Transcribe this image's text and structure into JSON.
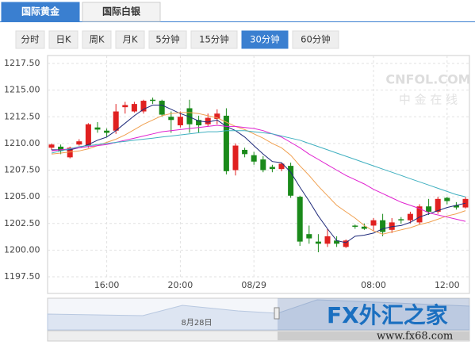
{
  "ui": {
    "tabs": [
      "国际黄金",
      "国际白银"
    ],
    "selected_tab": 0,
    "periods": [
      "分时",
      "日K",
      "周K",
      "月K",
      "5分钟",
      "15分钟",
      "30分钟",
      "60分钟"
    ],
    "selected_period": 6,
    "watermark": "CNFOL.COM",
    "watermark_sub": "中 金 在 线",
    "logo": "FX外汇之家",
    "logo_url": "www.fx68.com",
    "navigator_label": "8月28日"
  },
  "chart_data": {
    "type": "candlestick",
    "up_color": "#e02020",
    "down_color": "#1a8a1a",
    "categories": [
      null,
      null,
      null,
      null,
      null,
      null,
      "16:00",
      null,
      null,
      null,
      null,
      null,
      null,
      null,
      "20:00",
      null,
      null,
      null,
      null,
      null,
      null,
      null,
      "08/29",
      null,
      null,
      null,
      null,
      null,
      null,
      null,
      null,
      null,
      null,
      null,
      null,
      "08:00",
      null,
      null,
      null,
      null,
      null,
      null,
      null,
      "12:00",
      null,
      null
    ],
    "open": [
      1209.6,
      1209.7,
      1208.7,
      1209.9,
      1209.8,
      1211.5,
      1211.2,
      1211.2,
      1213.4,
      1213.0,
      1213.0,
      1214.1,
      1214.0,
      1212.5,
      1211.7,
      1213.3,
      1212.2,
      1211.8,
      1212.3,
      1212.6,
      1207.5,
      1209.4,
      1208.9,
      1208.5,
      1207.8,
      1207.6,
      1207.9,
      1205.0,
      1201.5,
      1200.8,
      1200.6,
      1200.9,
      1200.3,
      1202.3,
      1202.2,
      1202.3,
      1202.8,
      1201.9,
      1202.9,
      1202.8,
      1202.6,
      1204.1,
      1203.6,
      1204.9,
      1204.2,
      1204.0
    ],
    "high": [
      1210.0,
      1209.9,
      1209.7,
      1210.4,
      1211.9,
      1212.0,
      1211.4,
      1213.7,
      1213.9,
      1213.9,
      1214.1,
      1214.3,
      1214.1,
      1213.0,
      1213.0,
      1214.1,
      1212.6,
      1212.8,
      1213.2,
      1213.3,
      1210.0,
      1209.6,
      1209.2,
      1208.8,
      1208.0,
      1208.2,
      1208.2,
      1205.1,
      1202.3,
      1201.5,
      1202.0,
      1201.3,
      1201.0,
      1202.4,
      1202.5,
      1203.0,
      1203.4,
      1203.0,
      1203.1,
      1203.6,
      1204.3,
      1204.8,
      1205.0,
      1205.0,
      1204.5,
      1205.0
    ],
    "low": [
      1209.4,
      1209.0,
      1208.6,
      1209.8,
      1209.6,
      1211.0,
      1210.6,
      1210.9,
      1212.8,
      1212.9,
      1212.8,
      1213.7,
      1212.5,
      1211.0,
      1211.5,
      1211.0,
      1211.0,
      1211.6,
      1211.8,
      1207.1,
      1207.0,
      1208.7,
      1208.0,
      1207.3,
      1207.3,
      1207.4,
      1204.9,
      1200.4,
      1200.6,
      1199.8,
      1200.3,
      1200.3,
      1200.2,
      1202.0,
      1201.9,
      1201.8,
      1201.3,
      1201.6,
      1202.5,
      1202.5,
      1202.4,
      1203.3,
      1203.4,
      1204.3,
      1203.8,
      1203.9
    ],
    "close": [
      1209.9,
      1209.3,
      1209.6,
      1210.2,
      1211.8,
      1211.3,
      1211.0,
      1213.0,
      1213.6,
      1213.7,
      1214.0,
      1214.0,
      1212.7,
      1212.2,
      1212.5,
      1211.8,
      1211.7,
      1212.4,
      1212.8,
      1207.4,
      1209.8,
      1209.0,
      1208.3,
      1207.5,
      1207.6,
      1208.1,
      1205.1,
      1200.8,
      1201.1,
      1200.6,
      1201.3,
      1200.6,
      1200.9,
      1202.2,
      1202.0,
      1202.8,
      1201.7,
      1202.6,
      1202.8,
      1203.4,
      1204.1,
      1203.6,
      1204.8,
      1204.6,
      1204.0,
      1204.8
    ],
    "lines": [
      {
        "color": "#1f2a7a",
        "values": [
          1209.4,
          1209.4,
          1209.4,
          1209.6,
          1209.9,
          1210.3,
          1210.6,
          1211.2,
          1211.9,
          1212.6,
          1213.2,
          1213.6,
          1213.6,
          1213.2,
          1212.8,
          1212.5,
          1212.1,
          1212.0,
          1212.2,
          1211.6,
          1211.2,
          1210.6,
          1209.8,
          1209.0,
          1208.3,
          1208.2,
          1207.3,
          1205.9,
          1204.6,
          1203.2,
          1202.0,
          1200.9,
          1200.7,
          1201.3,
          1201.4,
          1201.6,
          1202.0,
          1202.2,
          1202.3,
          1202.6,
          1203.1,
          1203.4,
          1203.7,
          1204.0,
          1204.2,
          1204.4
        ]
      },
      {
        "color": "#f0a050",
        "values": [
          1209.0,
          1209.1,
          1209.2,
          1209.3,
          1209.5,
          1209.8,
          1210.1,
          1210.4,
          1210.8,
          1211.3,
          1211.8,
          1212.2,
          1212.6,
          1212.8,
          1212.9,
          1212.9,
          1212.8,
          1212.6,
          1212.4,
          1212.0,
          1211.6,
          1211.3,
          1210.9,
          1210.5,
          1210.0,
          1209.6,
          1208.9,
          1207.9,
          1207.0,
          1206.0,
          1205.1,
          1204.2,
          1203.6,
          1203.0,
          1202.3,
          1201.8,
          1201.5,
          1201.7,
          1201.9,
          1202.1,
          1202.4,
          1202.6,
          1202.9,
          1203.2,
          1203.4,
          1203.7
        ]
      },
      {
        "color": "#e020d0",
        "values": [
          1209.3,
          1209.4,
          1209.5,
          1209.6,
          1209.7,
          1209.8,
          1209.9,
          1210.1,
          1210.3,
          1210.5,
          1210.7,
          1210.9,
          1211.1,
          1211.2,
          1211.3,
          1211.4,
          1211.5,
          1211.6,
          1211.7,
          1211.6,
          1211.6,
          1211.5,
          1211.4,
          1211.2,
          1210.9,
          1210.6,
          1210.1,
          1209.6,
          1209.0,
          1208.5,
          1208.0,
          1207.5,
          1207.0,
          1206.6,
          1206.2,
          1205.7,
          1205.3,
          1204.9,
          1204.5,
          1204.2,
          1203.9,
          1203.5,
          1203.3,
          1203.1,
          1202.9,
          1202.7
        ]
      },
      {
        "color": "#40b0c0",
        "values": [
          1209.1,
          1209.3,
          1209.5,
          1209.7,
          1209.8,
          1209.9,
          1210.0,
          1210.1,
          1210.2,
          1210.3,
          1210.4,
          1210.5,
          1210.6,
          1210.7,
          1210.8,
          1210.9,
          1211.0,
          1211.1,
          1211.1,
          1211.2,
          1211.2,
          1211.2,
          1211.1,
          1211.0,
          1210.9,
          1210.7,
          1210.5,
          1210.3,
          1210.0,
          1209.7,
          1209.4,
          1209.1,
          1208.8,
          1208.5,
          1208.2,
          1207.9,
          1207.6,
          1207.3,
          1207.0,
          1206.7,
          1206.4,
          1206.1,
          1205.8,
          1205.5,
          1205.2,
          1205.0
        ]
      }
    ],
    "ylim": [
      1197.5,
      1217.5
    ],
    "yticks": [
      {
        "value": 1197.5,
        "label": "1197.50"
      },
      {
        "value": 1200,
        "label": "1200.00"
      },
      {
        "value": 1202.5,
        "label": "1202.50"
      },
      {
        "value": 1205,
        "label": "1205.00"
      },
      {
        "value": 1207.5,
        "label": "1207.50"
      },
      {
        "value": 1210,
        "label": "1210.00"
      },
      {
        "value": 1212.5,
        "label": "1212.50"
      },
      {
        "value": 1215,
        "label": "1215.00"
      },
      {
        "value": 1217.5,
        "label": "1217.50"
      }
    ],
    "grid": true
  }
}
